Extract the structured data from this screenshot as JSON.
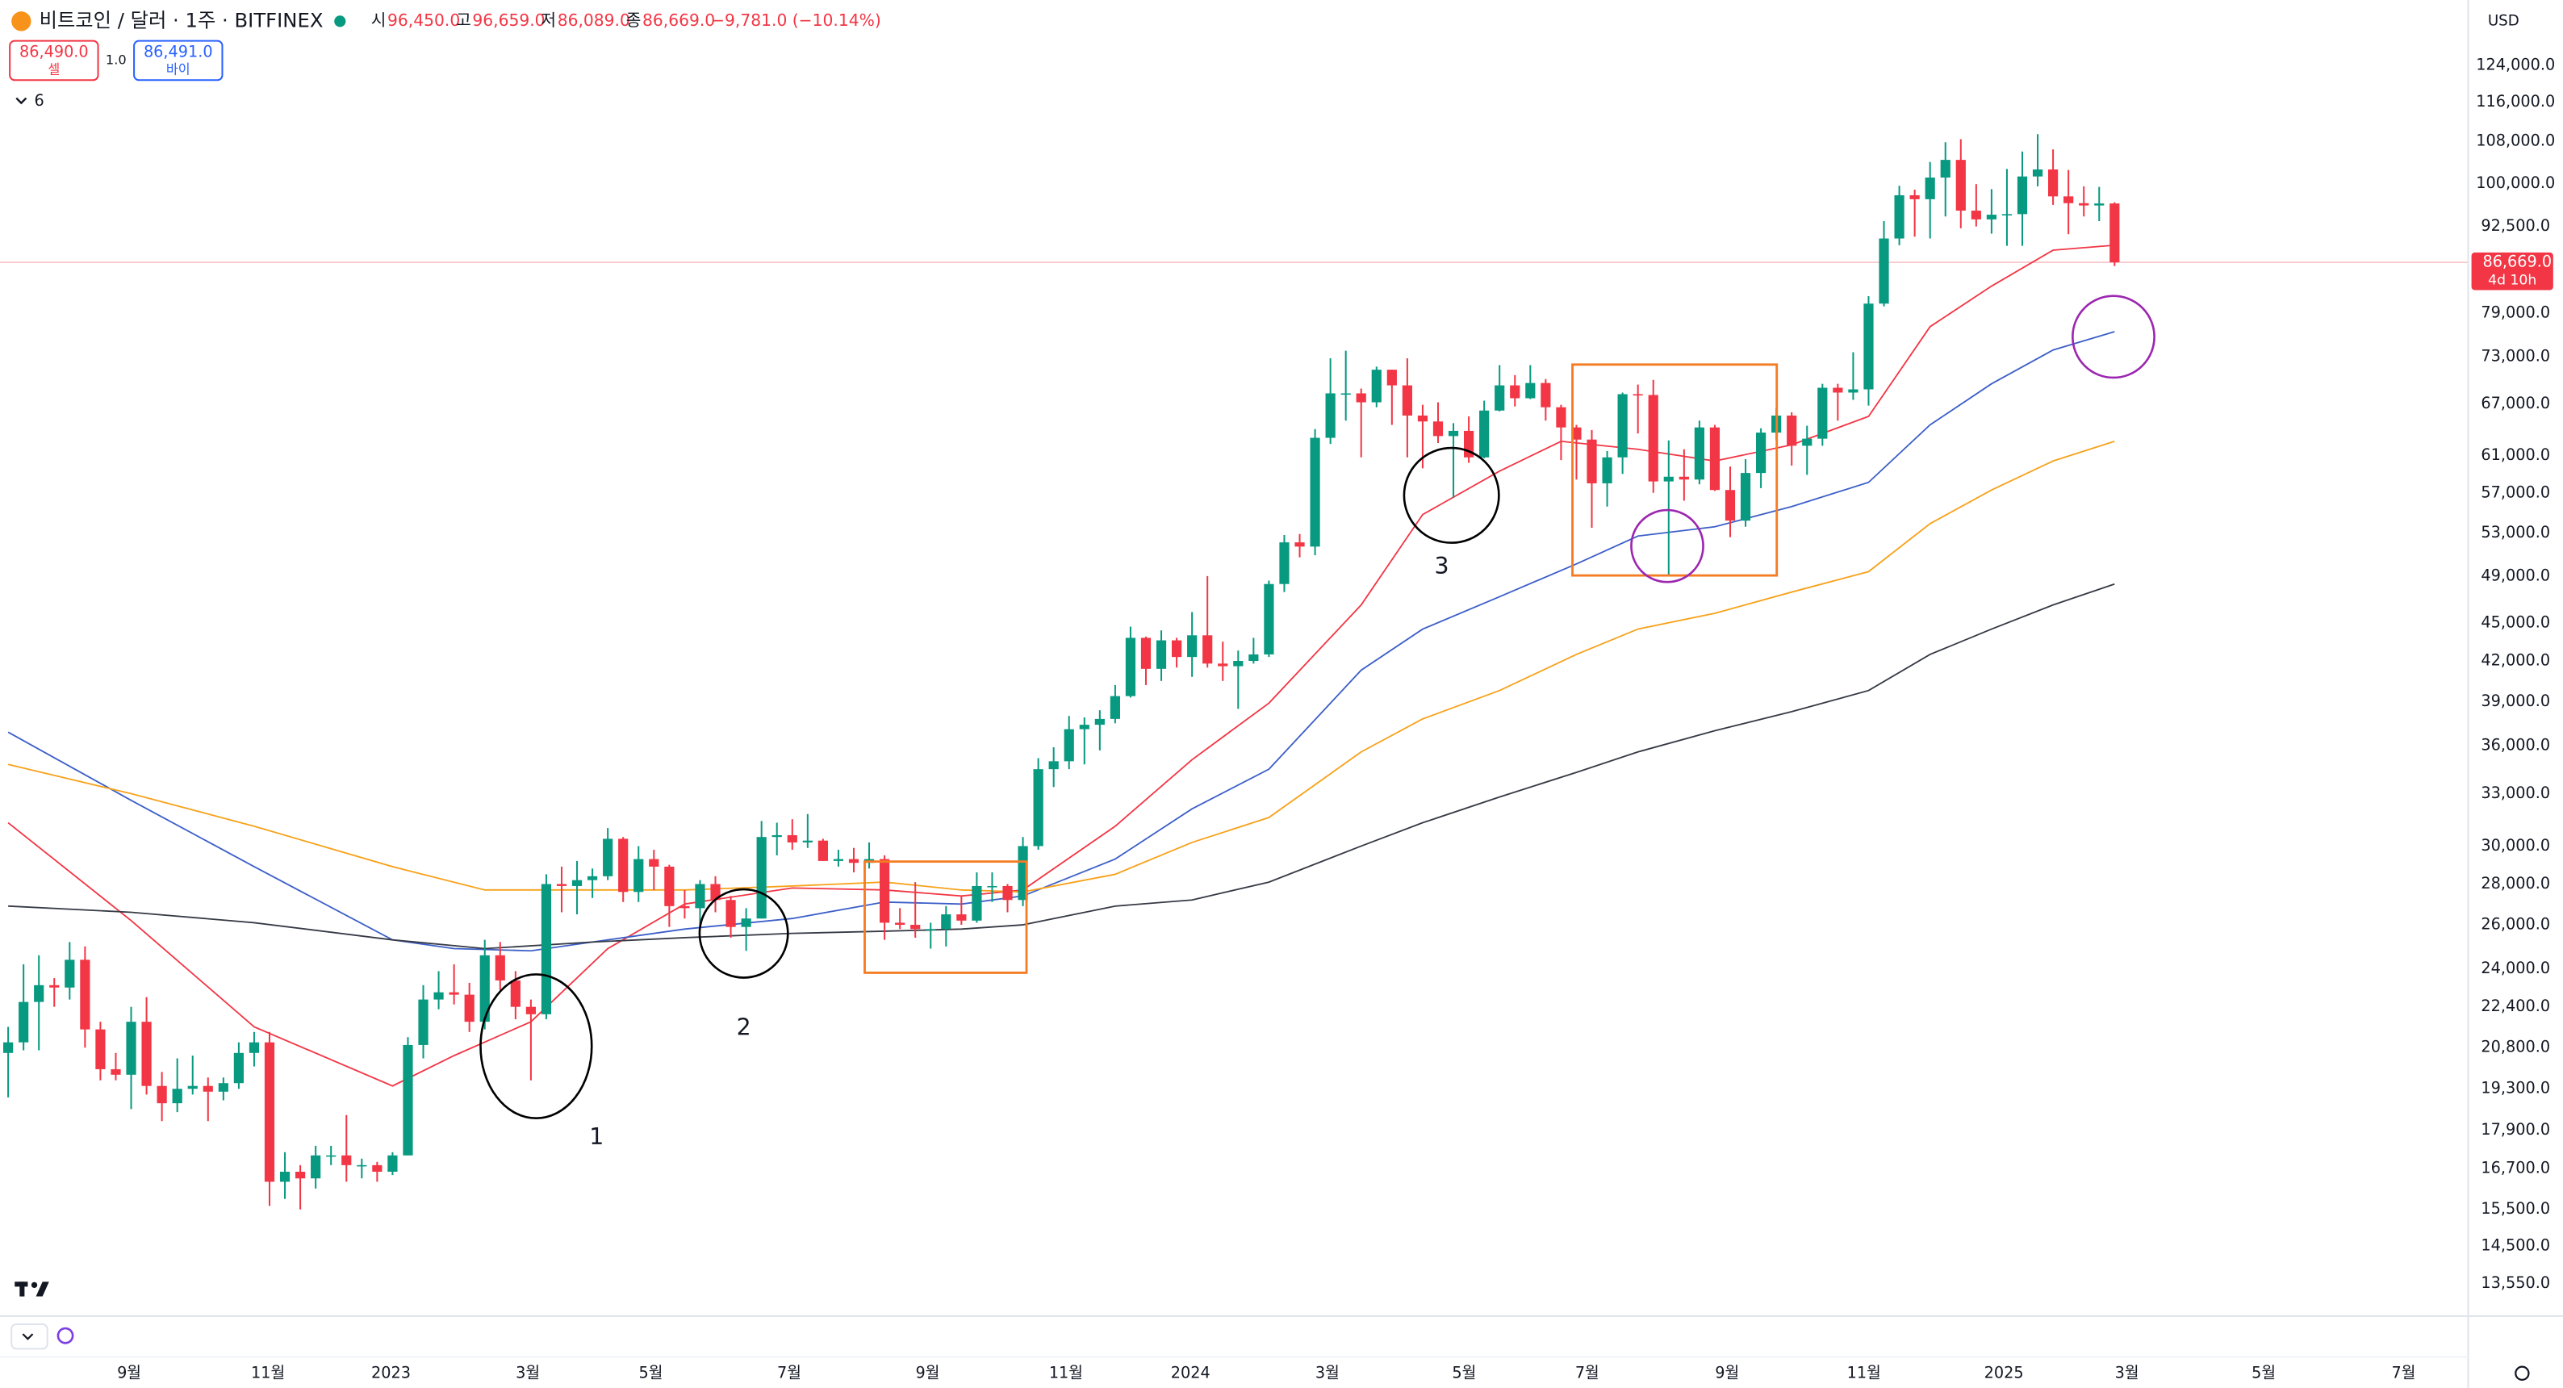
{
  "header": {
    "title": "비트코인 / 달러 · 1주 · BITFINEX",
    "open_label": "시",
    "open": "96,450.0",
    "high_label": "고",
    "high": "96,659.0",
    "low_label": "저",
    "low": "86,089.0",
    "close_label": "종",
    "close": "86,669.0",
    "change": "−9,781.0 (−10.14%)",
    "sell_price": "86,490.0",
    "sell_label": "셀",
    "quantity": "1.0",
    "buy_price": "86,491.0",
    "buy_label": "바이",
    "indicator_count": "6",
    "currency": "USD"
  },
  "chart_data": {
    "type": "candlestick",
    "open": [
      20600,
      21000,
      22600,
      23300,
      23200,
      24400,
      21500,
      20000,
      19800,
      21800,
      19400,
      18800,
      19300,
      19400,
      19200,
      19500,
      20600,
      21000,
      16300,
      16600,
      16400,
      17100,
      17100,
      16800,
      16800,
      16600,
      17100,
      20900,
      22700,
      23000,
      22900,
      21800,
      24600,
      23500,
      22400,
      22100,
      28000,
      27900,
      28200,
      28400,
      30400,
      27600,
      29300,
      28900,
      26900,
      26800,
      28000,
      27200,
      25900,
      26300,
      30500,
      30600,
      30200,
      30300,
      29200,
      29300,
      29100,
      29300,
      26100,
      26000,
      25800,
      25800,
      26500,
      26200,
      27900,
      27900,
      27200,
      30000,
      34500,
      35000,
      37100,
      37400,
      37800,
      39400,
      43800,
      41400,
      43600,
      42300,
      44000,
      41800,
      41600,
      42000,
      42500,
      48300,
      52100,
      51700,
      63000,
      68300,
      68300,
      67200,
      71300,
      69300,
      65600,
      64900,
      63200,
      63800,
      60800,
      66200,
      69300,
      67700,
      69600,
      66600,
      64200,
      62800,
      58000,
      60800,
      68200,
      68100,
      58200,
      58700,
      58400,
      64200,
      57300,
      54200,
      59100,
      63600,
      65600,
      62100,
      62900,
      69000,
      68400,
      68800,
      80400,
      90500,
      97900,
      97200,
      101100,
      104400,
      95200,
      93700,
      94500,
      94600,
      101300,
      102600,
      97700,
      96500,
      96100,
      96450
    ],
    "high": [
      21600,
      24200,
      24600,
      23600,
      25200,
      25000,
      21800,
      20600,
      22400,
      22800,
      19900,
      20400,
      20500,
      19700,
      19700,
      21000,
      21400,
      21400,
      17200,
      16800,
      17400,
      17400,
      18400,
      17000,
      16900,
      17200,
      21200,
      23300,
      23900,
      24200,
      23400,
      25300,
      25200,
      23900,
      22700,
      28500,
      28900,
      29200,
      28800,
      31000,
      30500,
      30000,
      29800,
      29000,
      27700,
      28200,
      28400,
      27400,
      26800,
      31400,
      31300,
      31500,
      31800,
      30400,
      29800,
      29900,
      30200,
      29500,
      26800,
      28100,
      26100,
      26900,
      27400,
      28600,
      28600,
      28000,
      30500,
      35200,
      35900,
      38000,
      37900,
      38400,
      40200,
      44700,
      43900,
      44400,
      43800,
      45900,
      49000,
      43500,
      42800,
      43800,
      48600,
      52800,
      52900,
      64000,
      72800,
      73800,
      68900,
      71700,
      71300,
      72800,
      66900,
      67200,
      64700,
      65500,
      67400,
      71900,
      70600,
      71900,
      70100,
      66900,
      64500,
      63900,
      61500,
      68400,
      69400,
      70000,
      62700,
      61700,
      65000,
      64500,
      59800,
      60600,
      64100,
      66500,
      66000,
      64400,
      69500,
      69500,
      73600,
      81500,
      93400,
      99600,
      98900,
      104000,
      107800,
      108400,
      99900,
      99000,
      102700,
      106000,
      109400,
      106400,
      102500,
      99500,
      99400,
      96659
    ],
    "low": [
      19000,
      20700,
      20700,
      22400,
      22700,
      20800,
      19600,
      19600,
      18600,
      19100,
      18200,
      18500,
      19100,
      18200,
      18900,
      19300,
      20100,
      15600,
      15800,
      15500,
      16100,
      16800,
      16300,
      16400,
      16300,
      16500,
      17100,
      20400,
      22300,
      22500,
      21400,
      21500,
      23100,
      21900,
      19600,
      21900,
      26600,
      26500,
      27300,
      28200,
      27100,
      27100,
      27700,
      25900,
      26300,
      25900,
      26600,
      25400,
      24800,
      26300,
      29500,
      29800,
      29900,
      29200,
      28900,
      28600,
      28800,
      25300,
      25800,
      25400,
      24900,
      25000,
      26000,
      26100,
      27100,
      26600,
      26900,
      29800,
      33400,
      34500,
      34800,
      35700,
      37500,
      39300,
      40200,
      40500,
      41500,
      40800,
      41500,
      40500,
      38500,
      41800,
      42300,
      47600,
      50700,
      50900,
      62300,
      65000,
      60800,
      66600,
      64500,
      60800,
      59600,
      62400,
      56500,
      60200,
      60700,
      66100,
      66700,
      67600,
      65000,
      60500,
      58400,
      53500,
      55600,
      59000,
      63500,
      57000,
      49000,
      56200,
      57900,
      57200,
      52600,
      53600,
      57500,
      62700,
      59900,
      58900,
      62100,
      65000,
      67500,
      66800,
      80000,
      89400,
      90800,
      90500,
      94200,
      92200,
      92500,
      91300,
      89300,
      89300,
      99500,
      96200,
      91200,
      94200,
      93400,
      86089
    ],
    "close": [
      21000,
      22600,
      23300,
      23200,
      24400,
      21500,
      20000,
      19800,
      21800,
      19400,
      18800,
      19300,
      19400,
      19200,
      19500,
      20600,
      21000,
      16300,
      16600,
      16400,
      17100,
      17100,
      16800,
      16800,
      16600,
      17100,
      20900,
      22700,
      23000,
      22900,
      21800,
      24600,
      23500,
      22400,
      22100,
      28000,
      27900,
      28200,
      28400,
      30400,
      27600,
      29300,
      28900,
      26900,
      26800,
      28000,
      27200,
      25900,
      26300,
      30500,
      30600,
      30200,
      30300,
      29200,
      29300,
      29100,
      29300,
      26100,
      26000,
      25800,
      25800,
      26500,
      26200,
      27900,
      27900,
      27200,
      30000,
      34500,
      35000,
      37100,
      37400,
      37800,
      39400,
      43800,
      41400,
      43600,
      42300,
      44000,
      41800,
      41600,
      42000,
      42500,
      48300,
      52100,
      51700,
      63000,
      68300,
      68300,
      67200,
      71300,
      69300,
      65600,
      64900,
      63200,
      63800,
      60800,
      66200,
      69300,
      67700,
      69600,
      66600,
      64200,
      62800,
      58000,
      60800,
      68200,
      68100,
      58200,
      58700,
      58400,
      64200,
      57300,
      54200,
      59100,
      63600,
      65600,
      62100,
      62900,
      69000,
      68400,
      68800,
      80400,
      90500,
      97900,
      97200,
      101100,
      104400,
      95200,
      93700,
      94500,
      94600,
      101300,
      102600,
      97700,
      96500,
      96100,
      96450,
      86669
    ],
    "up_color": "#089981",
    "down_color": "#f23645",
    "series": [
      {
        "color": "#f23645",
        "x": [
          0,
          8,
          16,
          25,
          29,
          34,
          39,
          44,
          51,
          57,
          62,
          66,
          72,
          77,
          82,
          88,
          92,
          97,
          101,
          106,
          111,
          116,
          121,
          125,
          129,
          133,
          137
        ],
        "values": [
          31300,
          26200,
          21600,
          19400,
          20500,
          21800,
          24900,
          27000,
          27800,
          27700,
          27400,
          27700,
          31100,
          35100,
          38900,
          46500,
          54800,
          59300,
          62600,
          61700,
          60400,
          62200,
          65500,
          77100,
          83000,
          88600,
          89400
        ]
      },
      {
        "color": "#3c5fc8",
        "x": [
          0,
          8,
          16,
          25,
          29,
          34,
          39,
          44,
          51,
          57,
          62,
          66,
          72,
          77,
          82,
          88,
          92,
          97,
          102,
          106,
          111,
          116,
          121,
          125,
          129,
          133,
          137
        ],
        "values": [
          36900,
          32600,
          28900,
          25300,
          24900,
          24800,
          25300,
          25800,
          26300,
          27100,
          27000,
          27400,
          29300,
          32100,
          34500,
          41300,
          44500,
          47200,
          50100,
          52700,
          53600,
          55600,
          58100,
          64500,
          69500,
          73900,
          76400
        ]
      },
      {
        "color": "#f7a21b",
        "x": [
          0,
          8,
          16,
          25,
          31,
          38,
          44,
          51,
          57,
          62,
          66,
          72,
          77,
          82,
          88,
          92,
          97,
          102,
          106,
          111,
          116,
          121,
          125,
          129,
          133,
          137
        ],
        "values": [
          34800,
          33000,
          31100,
          28900,
          27700,
          27700,
          27700,
          27900,
          28100,
          27700,
          27600,
          28500,
          30200,
          31600,
          35600,
          37800,
          39800,
          42500,
          44500,
          45800,
          47600,
          49400,
          53900,
          57300,
          60400,
          62600
        ]
      },
      {
        "color": "#363a45",
        "x": [
          0,
          8,
          16,
          25,
          31,
          38,
          44,
          51,
          57,
          62,
          66,
          72,
          77,
          82,
          88,
          92,
          97,
          102,
          106,
          111,
          116,
          121,
          125,
          129,
          133,
          137
        ],
        "values": [
          26900,
          26600,
          26100,
          25300,
          24900,
          25200,
          25400,
          25600,
          25700,
          25800,
          26000,
          26900,
          27200,
          28100,
          30000,
          31300,
          32800,
          34300,
          35600,
          37000,
          38300,
          39800,
          42500,
          44500,
          46500,
          48300
        ]
      }
    ],
    "log_scale": true,
    "grid": false,
    "ylim": [
      12770,
      139600
    ],
    "yticks": [
      {
        "value": 124000,
        "label": "124,000.0"
      },
      {
        "value": 116000,
        "label": "116,000.0"
      },
      {
        "value": 108000,
        "label": "108,000.0"
      },
      {
        "value": 100000,
        "label": "100,000.0"
      },
      {
        "value": 92500,
        "label": "92,500.0"
      },
      {
        "value": 79000,
        "label": "79,000.0"
      },
      {
        "value": 73000,
        "label": "73,000.0"
      },
      {
        "value": 67000,
        "label": "67,000.0"
      },
      {
        "value": 61000,
        "label": "61,000.0"
      },
      {
        "value": 57000,
        "label": "57,000.0"
      },
      {
        "value": 53000,
        "label": "53,000.0"
      },
      {
        "value": 49000,
        "label": "49,000.0"
      },
      {
        "value": 45000,
        "label": "45,000.0"
      },
      {
        "value": 42000,
        "label": "42,000.0"
      },
      {
        "value": 39000,
        "label": "39,000.0"
      },
      {
        "value": 36000,
        "label": "36,000.0"
      },
      {
        "value": 33000,
        "label": "33,000.0"
      },
      {
        "value": 30000,
        "label": "30,000.0"
      },
      {
        "value": 28000,
        "label": "28,000.0"
      },
      {
        "value": 26000,
        "label": "26,000.0"
      },
      {
        "value": 24000,
        "label": "24,000.0"
      },
      {
        "value": 22400,
        "label": "22,400.0"
      },
      {
        "value": 20800,
        "label": "20,800.0"
      },
      {
        "value": 19300,
        "label": "19,300.0"
      },
      {
        "value": 17900,
        "label": "17,900.0"
      },
      {
        "value": 16700,
        "label": "16,700.0"
      },
      {
        "value": 15500,
        "label": "15,500.0"
      },
      {
        "value": 14500,
        "label": "14,500.0"
      },
      {
        "value": 13550,
        "label": "13,550.0"
      }
    ],
    "xlim": [
      -0.53,
      160
    ],
    "xticks": [
      {
        "value": 7.87,
        "label": "9월"
      },
      {
        "value": 16.9,
        "label": "11월"
      },
      {
        "value": 24.9,
        "label": "2023"
      },
      {
        "value": 33.8,
        "label": "3월"
      },
      {
        "value": 41.8,
        "label": "5월"
      },
      {
        "value": 50.8,
        "label": "7월"
      },
      {
        "value": 59.8,
        "label": "9월"
      },
      {
        "value": 68.8,
        "label": "11월"
      },
      {
        "value": 76.9,
        "label": "2024"
      },
      {
        "value": 85.8,
        "label": "3월"
      },
      {
        "value": 94.7,
        "label": "5월"
      },
      {
        "value": 102.7,
        "label": "7월"
      },
      {
        "value": 111.8,
        "label": "9월"
      },
      {
        "value": 120.7,
        "label": "11월"
      },
      {
        "value": 129.8,
        "label": "2025"
      },
      {
        "value": 137.8,
        "label": "3월"
      },
      {
        "value": 146.7,
        "label": "5월"
      },
      {
        "value": 155.8,
        "label": "7월"
      }
    ],
    "last_price": {
      "value": 86669,
      "label": "86,669.0"
    },
    "countdown": "4d 10h",
    "annotations": [
      "1",
      "2",
      "3"
    ]
  }
}
